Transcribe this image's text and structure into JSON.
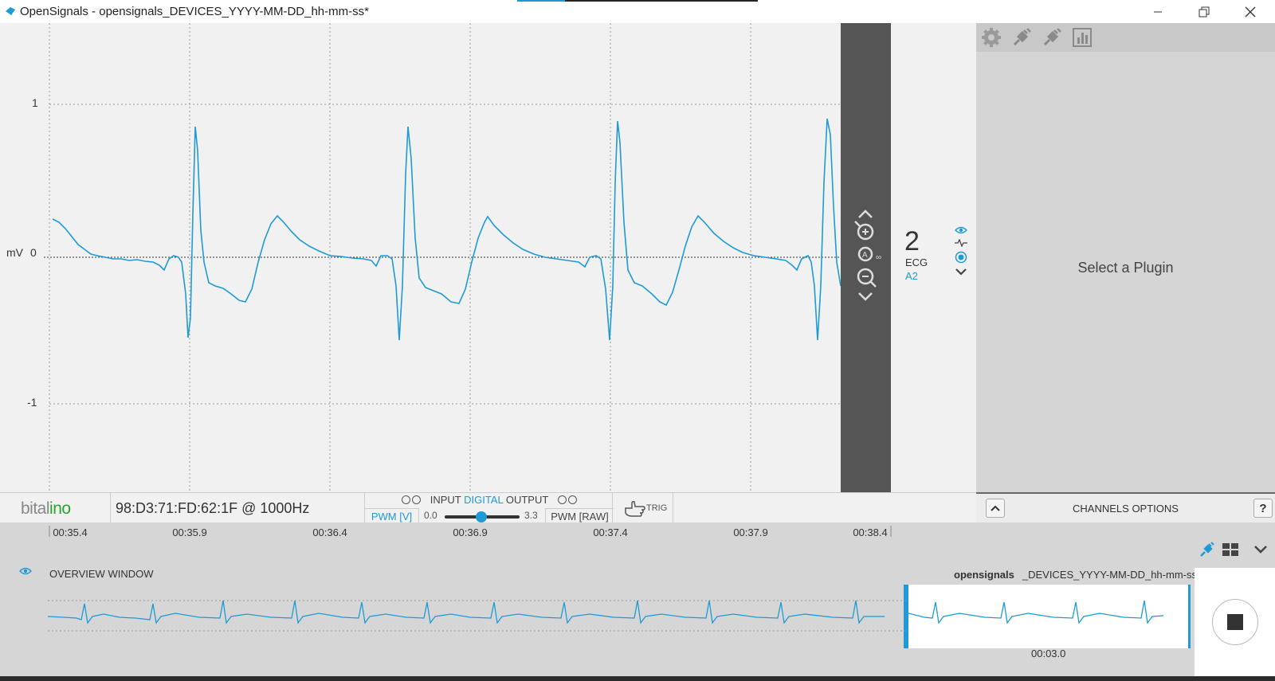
{
  "window": {
    "title": "OpenSignals - opensignals_DEVICES_YYYY-MM-DD_hh-mm-ss*",
    "minimize_icon": "minimize-icon",
    "maximize_icon": "restore-icon",
    "close_icon": "close-icon"
  },
  "plot": {
    "y_unit": "mV",
    "y_ticks": [
      "1",
      "0",
      "-1"
    ],
    "line_color": "#1e9ad6",
    "background": "#f1f1f1"
  },
  "channel": {
    "number": "2",
    "type": "ECG",
    "port": "A2",
    "icons": [
      "eye-icon",
      "signal-icon",
      "radio-icon",
      "chevron-down-icon"
    ]
  },
  "zoom_controls": [
    "chevron-up-icon",
    "zoom-in-icon",
    "zoom-auto-icon",
    "zoom-out-icon",
    "chevron-down-icon"
  ],
  "plugin_panel": {
    "message": "Select a Plugin",
    "toolbar_icons": [
      "gear-icon",
      "plug-icon",
      "plug-icon",
      "bar-chart-icon"
    ]
  },
  "device_bar": {
    "logo_text_gray": "bital",
    "logo_text_green": "ino",
    "device": "98:D3:71:FD:62:1F @ 1000Hz",
    "io_input": "INPUT",
    "io_digital": "DIGITAL",
    "io_output": "OUTPUT",
    "pwm_v": "PWM [V]",
    "slider_min": "0.0",
    "slider_max": "3.3",
    "slider_value_fraction": 0.5,
    "pwm_raw": "PWM [RAW]",
    "trig": "TRIG"
  },
  "channels_options": {
    "label": "CHANNELS OPTIONS",
    "help": "?"
  },
  "time_axis": {
    "ticks": [
      "00:35.4",
      "00:35.9",
      "00:36.4",
      "00:36.9",
      "00:37.4",
      "00:37.9",
      "00:38.4"
    ]
  },
  "overview": {
    "label": "OVERVIEW WINDOW",
    "filename_bold": "opensignals",
    "filename_rest": "_DEVICES_YYYY-MM-DD_hh-mm-ss*",
    "window_time": "00:03.0"
  },
  "right_icons": [
    "plug-active-icon",
    "grid-icon",
    "chevron-down-icon"
  ]
}
